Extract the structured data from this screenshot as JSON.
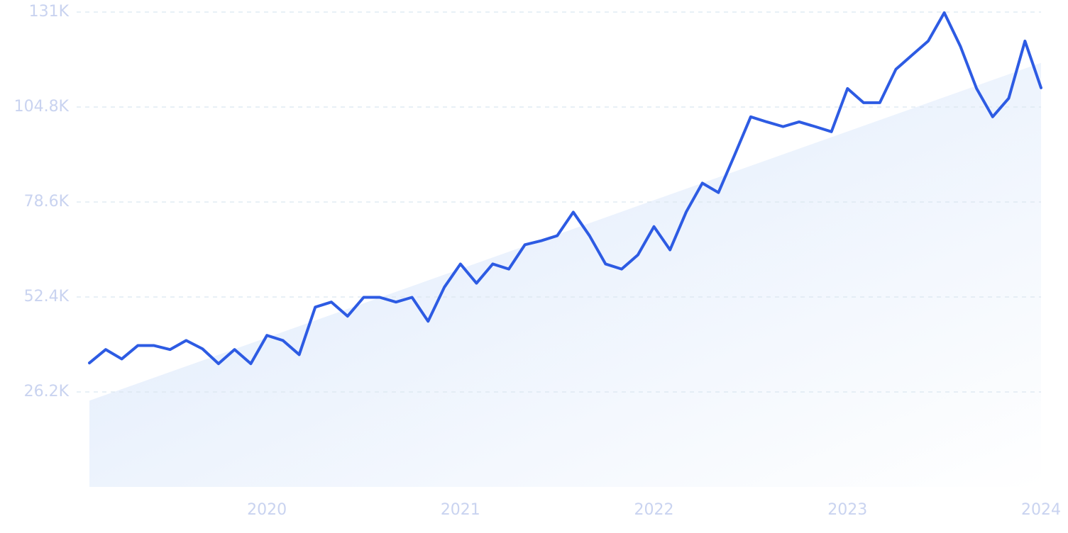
{
  "chart_data": {
    "type": "line",
    "x": [
      2019.083,
      2019.167,
      2019.25,
      2019.333,
      2019.417,
      2019.5,
      2019.583,
      2019.667,
      2019.75,
      2019.833,
      2019.917,
      2020,
      2020.083,
      2020.167,
      2020.25,
      2020.333,
      2020.417,
      2020.5,
      2020.583,
      2020.667,
      2020.75,
      2020.833,
      2020.917,
      2021,
      2021.083,
      2021.167,
      2021.25,
      2021.333,
      2021.417,
      2021.5,
      2021.583,
      2021.667,
      2021.75,
      2021.833,
      2021.917,
      2022,
      2022.083,
      2022.167,
      2022.25,
      2022.333,
      2022.417,
      2022.5,
      2022.583,
      2022.667,
      2022.75,
      2022.833,
      2022.917,
      2023,
      2023.083,
      2023.167,
      2023.25,
      2023.333,
      2023.417,
      2023.5,
      2023.583,
      2023.667,
      2023.75,
      2023.833,
      2023.917,
      2024
    ],
    "values": [
      34.2,
      37.9,
      35.3,
      39.0,
      39.0,
      37.9,
      40.4,
      38.1,
      34.0,
      37.9,
      34.0,
      41.8,
      40.4,
      36.5,
      49.6,
      51.0,
      47.1,
      52.3,
      52.3,
      51.0,
      52.3,
      45.7,
      55.1,
      61.5,
      56.2,
      61.5,
      60.1,
      66.8,
      67.9,
      69.3,
      75.8,
      69.3,
      61.5,
      60.1,
      64.0,
      71.8,
      65.4,
      75.9,
      83.8,
      81.2,
      91.6,
      102.1,
      100.7,
      99.4,
      100.7,
      99.4,
      98.0,
      109.9,
      106.0,
      106.0,
      115.2,
      119.1,
      123.0,
      130.8,
      121.6,
      109.9,
      102.1,
      107.2,
      123.0,
      110.1
    ],
    "color": "#2d5be3",
    "trend": [
      23.8,
      117
    ],
    "xlim": [
      2019.083,
      2024
    ],
    "xticks": [
      2020,
      2021,
      2022,
      2023,
      2024
    ],
    "ylim": [
      0,
      131
    ],
    "yticks": [
      {
        "value": 26.2,
        "label": "26.2K"
      },
      {
        "value": 52.4,
        "label": "52.4K"
      },
      {
        "value": 78.6,
        "label": "78.6K"
      },
      {
        "value": 104.8,
        "label": "104.8K"
      },
      {
        "value": 131,
        "label": "131K"
      }
    ],
    "grid": true
  }
}
